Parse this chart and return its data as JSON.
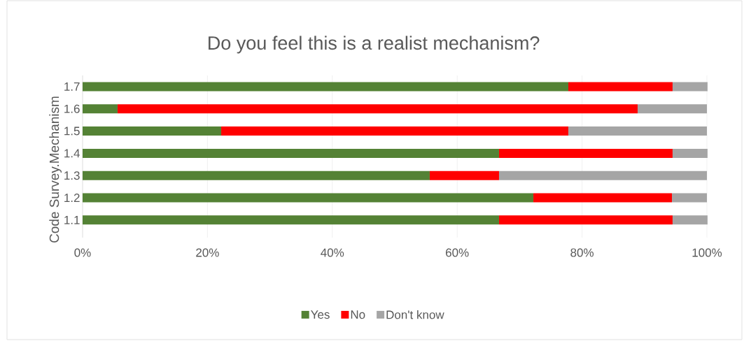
{
  "chart_data": {
    "type": "bar",
    "orientation": "horizontal",
    "stacked": true,
    "title": "Do you feel this is a realist mechanism?",
    "ylabel": "Code Survey.Mechanism",
    "categories": [
      "1.7",
      "1.6",
      "1.5",
      "1.4",
      "1.3",
      "1.2",
      "1.1"
    ],
    "series": [
      {
        "name": "Yes",
        "color": "#548235",
        "values": [
          77.8,
          5.6,
          22.2,
          66.7,
          55.6,
          72.2,
          66.7
        ]
      },
      {
        "name": "No",
        "color": "#ff0000",
        "values": [
          16.7,
          83.3,
          55.6,
          27.8,
          11.1,
          22.2,
          27.8
        ]
      },
      {
        "name": "Don't know",
        "color": "#a5a5a5",
        "values": [
          5.6,
          11.1,
          22.2,
          5.6,
          33.3,
          5.6,
          5.6
        ]
      }
    ],
    "xlim": [
      0,
      100
    ],
    "xticks": [
      {
        "value": 0,
        "label": "0%"
      },
      {
        "value": 20,
        "label": "20%"
      },
      {
        "value": 40,
        "label": "40%"
      },
      {
        "value": 60,
        "label": "60%"
      },
      {
        "value": 80,
        "label": "80%"
      },
      {
        "value": 100,
        "label": "100%"
      }
    ],
    "grid": "x",
    "legend": "bottom"
  }
}
